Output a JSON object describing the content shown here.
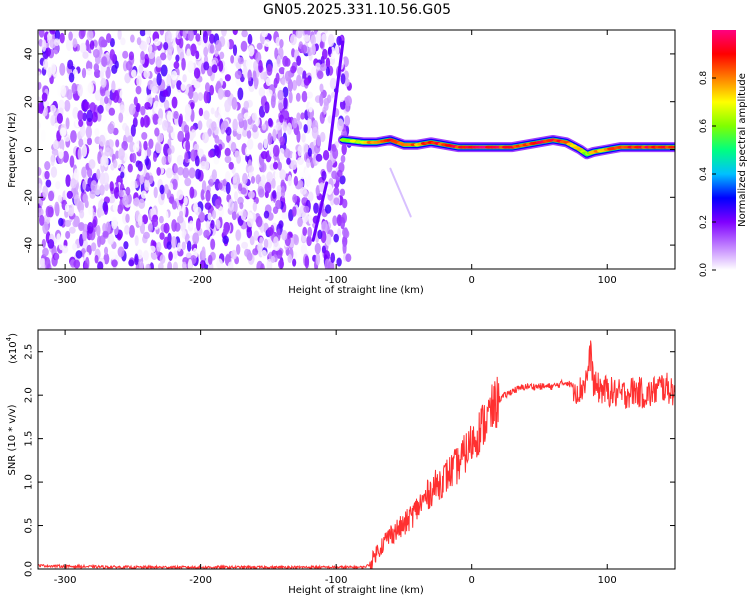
{
  "chart_data": [
    {
      "type": "heatmap",
      "title": "GN05.2025.331.10.56.G05",
      "xlabel": "Height of straight line (km)",
      "ylabel": "Frequency (Hz)",
      "xlim": [
        -320,
        150
      ],
      "ylim": [
        -50,
        50
      ],
      "x_ticks": [
        -300,
        -200,
        -100,
        0,
        100
      ],
      "x_tick_labels": [
        "-300",
        "-200",
        "-100",
        "0",
        "100"
      ],
      "y_ticks": [
        -40,
        -20,
        0,
        20,
        40
      ],
      "y_tick_labels": [
        "-40",
        "-20",
        "0",
        "20",
        "40"
      ],
      "colorbar": {
        "label": "Normalized spectral amplitude",
        "range": [
          0.0,
          1.0
        ],
        "ticks": [
          0.0,
          0.2,
          0.4,
          0.6,
          0.8
        ],
        "tick_labels": [
          "0.0",
          "0.2",
          "0.4",
          "0.6",
          "0.8"
        ],
        "colors": [
          "#ffffff",
          "#c080ff",
          "#8000ff",
          "#0000ff",
          "#00c0ff",
          "#00ff80",
          "#80ff00",
          "#ffff00",
          "#ff8000",
          "#ff0000",
          "#ff0080"
        ]
      },
      "noise_region": {
        "x_range": [
          -320,
          -90
        ],
        "amplitude_range": [
          0.0,
          0.25
        ]
      },
      "signal_ridge": {
        "x": [
          -95,
          -80,
          -70,
          -60,
          -50,
          -40,
          -30,
          -20,
          -10,
          0,
          10,
          20,
          30,
          40,
          50,
          60,
          70,
          80,
          85,
          90,
          100,
          110,
          120,
          130,
          140,
          150
        ],
        "frequency": [
          4,
          3,
          3,
          4,
          2,
          2,
          3,
          2,
          1,
          1,
          1,
          1,
          1,
          2,
          3,
          4,
          3,
          0,
          -2,
          -1,
          0,
          1,
          1,
          1,
          1,
          1
        ],
        "amplitude": [
          0.6,
          0.7,
          0.8,
          0.9,
          0.8,
          0.8,
          0.9,
          0.85,
          0.9,
          0.95,
          0.95,
          0.9,
          0.9,
          0.85,
          0.9,
          0.9,
          0.85,
          0.7,
          0.6,
          0.7,
          0.85,
          0.9,
          0.9,
          0.9,
          0.9,
          0.9
        ]
      },
      "artifact_streaks": [
        {
          "x": [
            -117,
            -107
          ],
          "frequency": [
            -38,
            -14
          ]
        },
        {
          "x": [
            -105,
            -95
          ],
          "frequency": [
            0,
            45
          ]
        },
        {
          "x": [
            -60,
            -45
          ],
          "frequency": [
            -8,
            -28
          ]
        }
      ]
    },
    {
      "type": "line",
      "title": "",
      "xlabel": "Height of straight line (km)",
      "ylabel": "SNR (10 * v/v)",
      "y_multiplier_label": "(x10",
      "y_multiplier_exponent": "4",
      "xlim": [
        -320,
        150
      ],
      "ylim": [
        0,
        2.75
      ],
      "x_ticks": [
        -300,
        -200,
        -100,
        0,
        100
      ],
      "x_tick_labels": [
        "-300",
        "-200",
        "-100",
        "0",
        "100"
      ],
      "y_ticks": [
        0.0,
        0.5,
        1.0,
        1.5,
        2.0,
        2.5
      ],
      "y_tick_labels": [
        "0.0",
        "0.5",
        "1.0",
        "1.5",
        "2.0",
        "2.5"
      ],
      "series": [
        {
          "color": "#ff3030",
          "x": [
            -320,
            -300,
            -250,
            -200,
            -150,
            -100,
            -80,
            -75,
            -70,
            -60,
            -50,
            -40,
            -30,
            -20,
            -10,
            0,
            10,
            20,
            30,
            40,
            50,
            60,
            70,
            80,
            85,
            88,
            90,
            100,
            110,
            120,
            130,
            140,
            150
          ],
          "y": [
            0.04,
            0.03,
            0.02,
            0.02,
            0.02,
            0.02,
            0.02,
            0.05,
            0.2,
            0.4,
            0.5,
            0.7,
            0.9,
            1.05,
            1.2,
            1.45,
            1.7,
            1.95,
            2.05,
            2.1,
            2.1,
            2.1,
            2.15,
            2.05,
            2.2,
            2.5,
            2.1,
            2.05,
            2.0,
            2.05,
            2.0,
            2.1,
            2.05
          ]
        }
      ]
    }
  ]
}
